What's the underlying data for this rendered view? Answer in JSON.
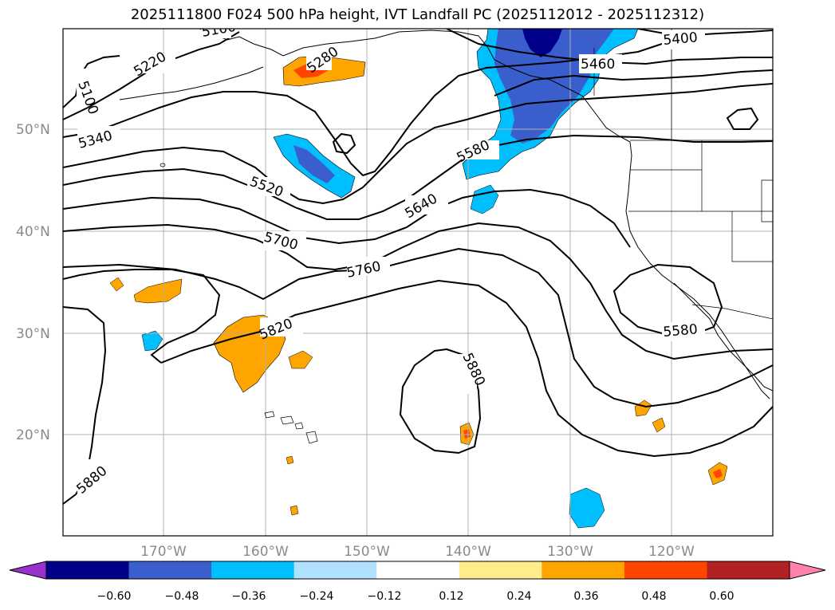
{
  "title": "2025111800 F024 500 hPa height, IVT Landfall PC (2025112012 - 2025112312)",
  "map": {
    "lat_ticks": [
      "50°N",
      "40°N",
      "30°N",
      "20°N"
    ],
    "lon_ticks": [
      "170°W",
      "160°W",
      "150°W",
      "140°W",
      "130°W",
      "120°W"
    ],
    "contour_labels": [
      "5100",
      "5220",
      "5100",
      "5280",
      "5340",
      "5520",
      "5580",
      "5640",
      "5700",
      "5760",
      "5820",
      "5880",
      "5460",
      "5400",
      "5580",
      "5880"
    ]
  },
  "colorbar": {
    "ticks": [
      "−0.60",
      "−0.48",
      "−0.36",
      "−0.24",
      "−0.12",
      "0.12",
      "0.24",
      "0.36",
      "0.48",
      "0.60"
    ],
    "colors": [
      "#9932cc",
      "#00008b",
      "#3a5fcd",
      "#00bfff",
      "#b0e2ff",
      "#ffffff",
      "#ffec8b",
      "#ffa500",
      "#ff4500",
      "#b22222",
      "#ff82ab"
    ]
  },
  "legend_colors": {
    "positive_medium": "#ffa500",
    "positive_strong": "#ff4500",
    "negative_light": "#00bfff",
    "negative_medium": "#3a5fcd",
    "negative_strong": "#00008b"
  }
}
